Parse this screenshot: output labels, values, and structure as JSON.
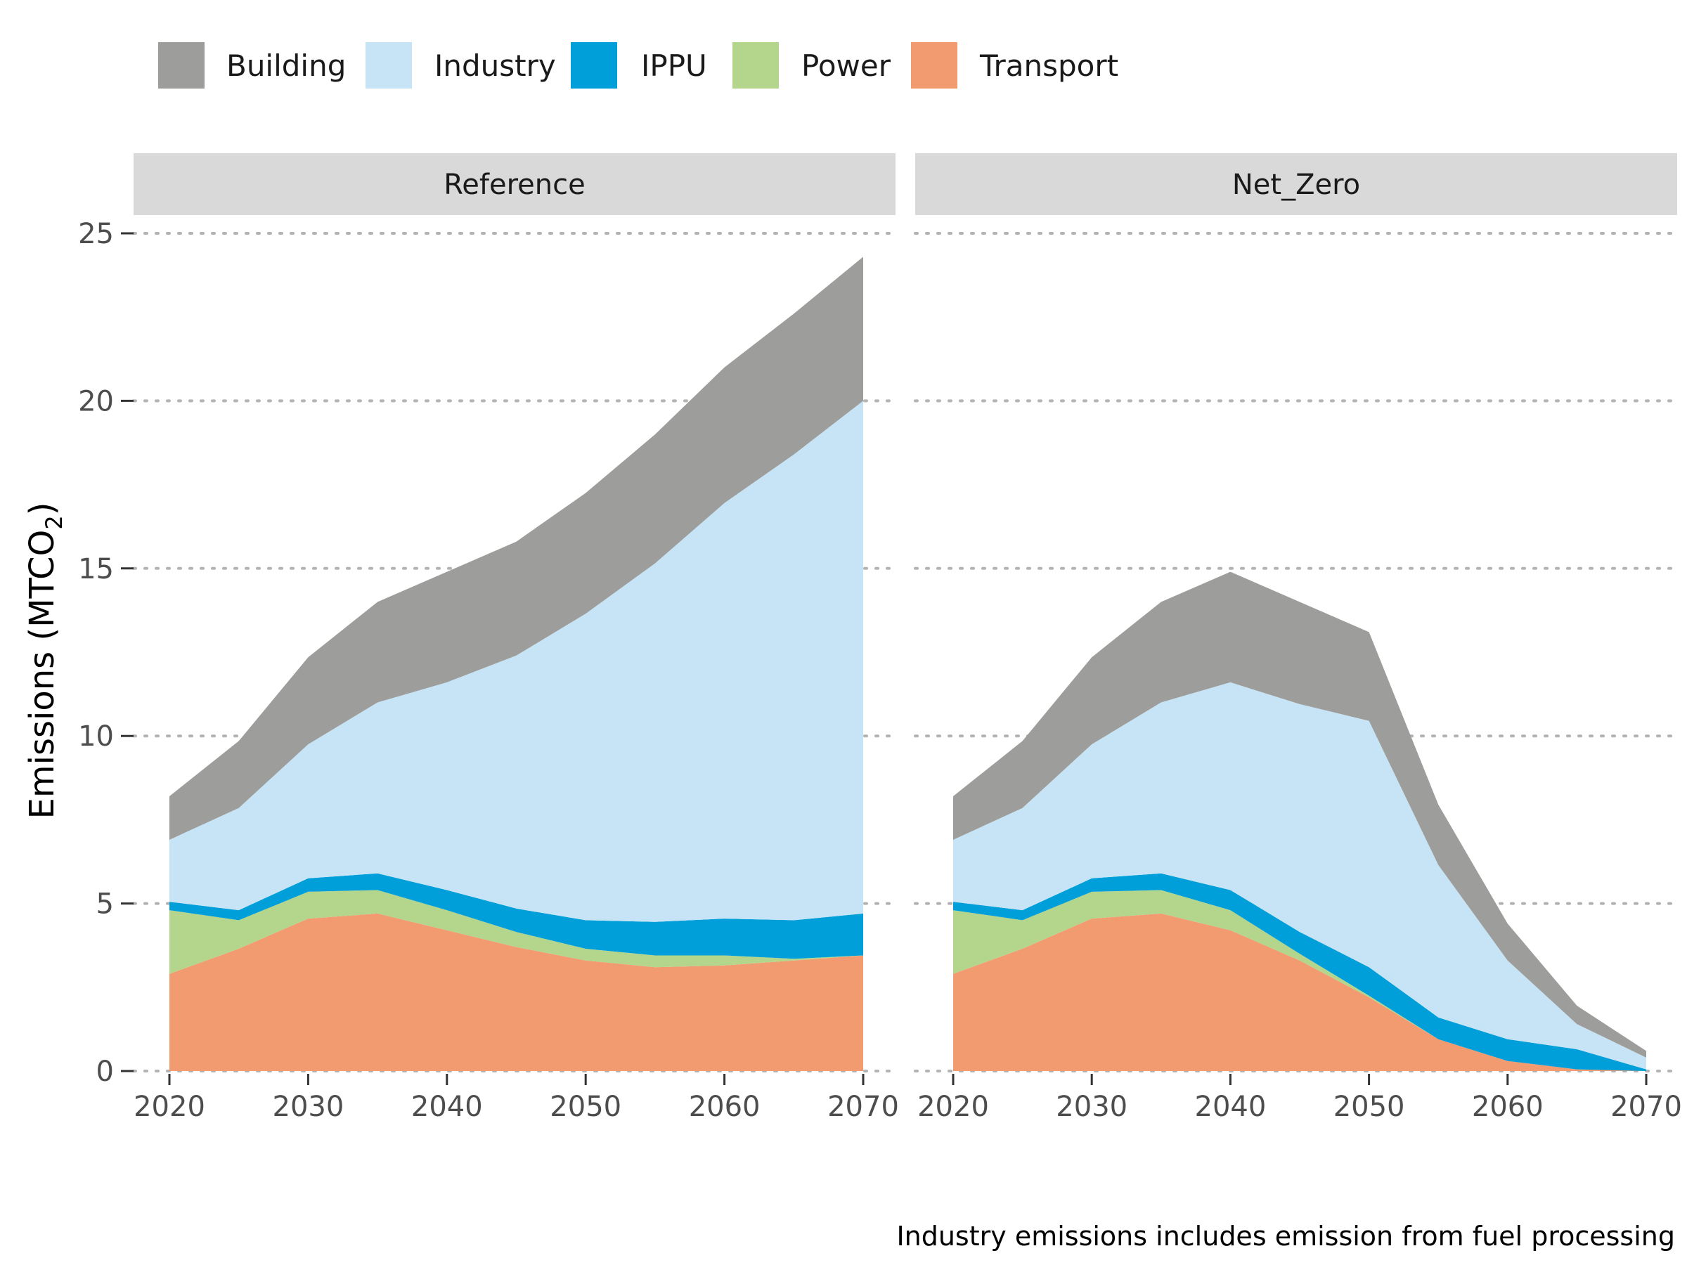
{
  "chart_data": {
    "type": "area",
    "stacked": true,
    "legend_position": "top",
    "legend": [
      {
        "name": "Building",
        "color": "#9d9d9b"
      },
      {
        "name": "Industry",
        "color": "#c6e4f5"
      },
      {
        "name": "IPPU",
        "color": "#009fd9"
      },
      {
        "name": "Power",
        "color": "#b4d58c"
      },
      {
        "name": "Transport",
        "color": "#f29a70"
      }
    ],
    "stack_order_bottom_to_top": [
      "Transport",
      "Power",
      "IPPU",
      "Industry",
      "Building"
    ],
    "ylabel_main": "Emissions (MTCO",
    "ylabel_sub": "2",
    "ylabel_close": ")",
    "caption": "Industry emissions includes emission from fuel processing",
    "ylim": [
      0,
      25
    ],
    "yticks": [
      0,
      5,
      10,
      15,
      20,
      25
    ],
    "xlim": [
      2020,
      2070
    ],
    "xticks": [
      2020,
      2030,
      2040,
      2050,
      2060,
      2070
    ],
    "grid": "horizontal dotted",
    "panels": [
      {
        "title": "Reference",
        "x": [
          2020,
          2025,
          2030,
          2035,
          2040,
          2045,
          2050,
          2055,
          2060,
          2065,
          2070
        ],
        "series": [
          {
            "name": "Transport",
            "values": [
              2.9,
              3.65,
              4.55,
              4.7,
              4.2,
              3.7,
              3.3,
              3.1,
              3.15,
              3.3,
              3.45
            ]
          },
          {
            "name": "Power",
            "values": [
              1.9,
              0.85,
              0.8,
              0.7,
              0.6,
              0.45,
              0.35,
              0.35,
              0.3,
              0.05,
              0.0
            ]
          },
          {
            "name": "IPPU",
            "values": [
              0.25,
              0.3,
              0.4,
              0.5,
              0.6,
              0.7,
              0.85,
              1.0,
              1.1,
              1.15,
              1.25
            ]
          },
          {
            "name": "Industry",
            "values": [
              1.85,
              3.05,
              4.0,
              5.1,
              6.2,
              7.55,
              9.15,
              10.7,
              12.4,
              13.9,
              15.3
            ]
          },
          {
            "name": "Building",
            "values": [
              1.3,
              2.0,
              2.6,
              3.0,
              3.3,
              3.4,
              3.6,
              3.85,
              4.05,
              4.2,
              4.3
            ]
          }
        ]
      },
      {
        "title": "Net_Zero",
        "x": [
          2020,
          2025,
          2030,
          2035,
          2040,
          2045,
          2050,
          2055,
          2060,
          2065,
          2070
        ],
        "series": [
          {
            "name": "Transport",
            "values": [
              2.9,
              3.65,
              4.55,
              4.7,
              4.2,
              3.3,
              2.2,
              0.95,
              0.3,
              0.05,
              0.0
            ]
          },
          {
            "name": "Power",
            "values": [
              1.9,
              0.85,
              0.8,
              0.7,
              0.6,
              0.2,
              0.05,
              0.0,
              0.0,
              0.0,
              0.0
            ]
          },
          {
            "name": "IPPU",
            "values": [
              0.25,
              0.3,
              0.4,
              0.5,
              0.6,
              0.65,
              0.85,
              0.65,
              0.65,
              0.6,
              0.05
            ]
          },
          {
            "name": "Industry",
            "values": [
              1.85,
              3.05,
              4.0,
              5.1,
              6.2,
              6.8,
              7.35,
              4.55,
              2.35,
              0.75,
              0.35
            ]
          },
          {
            "name": "Building",
            "values": [
              1.3,
              2.0,
              2.6,
              3.0,
              3.3,
              3.05,
              2.65,
              1.8,
              1.1,
              0.55,
              0.2
            ]
          }
        ]
      }
    ]
  }
}
